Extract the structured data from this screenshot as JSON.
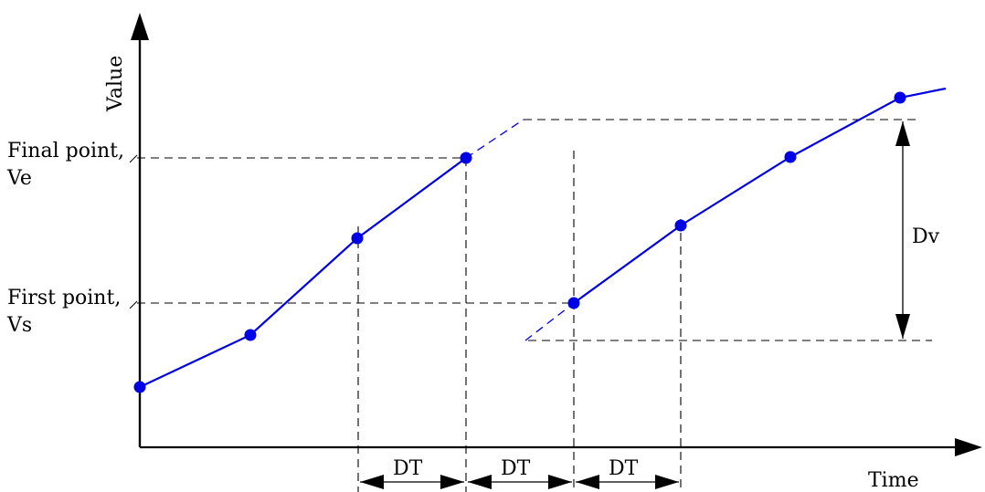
{
  "axes": {
    "y_label": "Value",
    "x_label": "Time"
  },
  "labels": {
    "final_point_line1": "Final point,",
    "final_point_line2": "Ve",
    "first_point_line1": "First point,",
    "first_point_line2": "Vs",
    "value_delta": "Dv",
    "time_steps": [
      "DT",
      "DT",
      "DT"
    ]
  },
  "colors": {
    "curve": "#0000e6",
    "axes": "#000000"
  }
}
